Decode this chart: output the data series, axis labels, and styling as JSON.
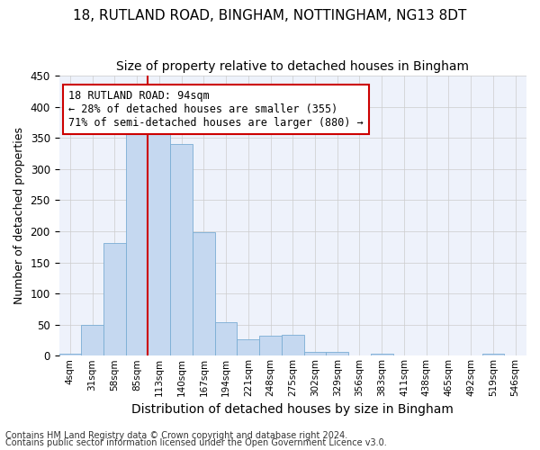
{
  "title1": "18, RUTLAND ROAD, BINGHAM, NOTTINGHAM, NG13 8DT",
  "title2": "Size of property relative to detached houses in Bingham",
  "xlabel": "Distribution of detached houses by size in Bingham",
  "ylabel": "Number of detached properties",
  "categories": [
    "4sqm",
    "31sqm",
    "58sqm",
    "85sqm",
    "113sqm",
    "140sqm",
    "167sqm",
    "194sqm",
    "221sqm",
    "248sqm",
    "275sqm",
    "302sqm",
    "329sqm",
    "356sqm",
    "383sqm",
    "411sqm",
    "438sqm",
    "465sqm",
    "492sqm",
    "519sqm",
    "546sqm"
  ],
  "values": [
    3,
    50,
    181,
    369,
    367,
    340,
    199,
    54,
    26,
    32,
    33,
    6,
    6,
    0,
    3,
    0,
    0,
    0,
    0,
    3,
    0
  ],
  "bar_color": "#c5d8f0",
  "bar_edge_color": "#7aadd4",
  "vline_x": 3.5,
  "vline_color": "#cc0000",
  "annotation_line1": "18 RUTLAND ROAD: 94sqm",
  "annotation_line2": "← 28% of detached houses are smaller (355)",
  "annotation_line3": "71% of semi-detached houses are larger (880) →",
  "annotation_box_color": "#ffffff",
  "annotation_box_edge_color": "#cc0000",
  "grid_color": "#cccccc",
  "bg_color": "#eef2fb",
  "footer1": "Contains HM Land Registry data © Crown copyright and database right 2024.",
  "footer2": "Contains public sector information licensed under the Open Government Licence v3.0.",
  "ylim": [
    0,
    450
  ],
  "title1_fontsize": 11,
  "title2_fontsize": 10,
  "xlabel_fontsize": 10,
  "ylabel_fontsize": 9,
  "tick_fontsize": 7.5,
  "annotation_fontsize": 8.5,
  "footer_fontsize": 7
}
